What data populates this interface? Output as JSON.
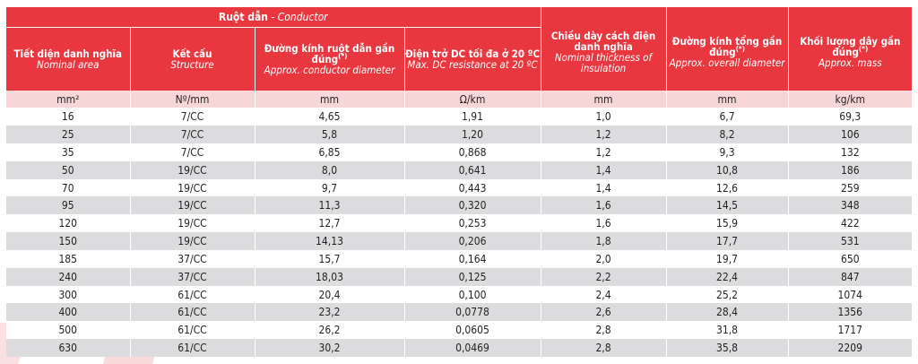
{
  "header": {
    "conductor_group": {
      "vn": "Ruột dẫn",
      "sep": " - ",
      "en": "Conductor"
    },
    "columns": [
      {
        "vn": "Tiết diện danh nghĩa",
        "en": "Nominal area"
      },
      {
        "vn": "Kết cấu",
        "en": "Structure"
      },
      {
        "vn": "Đường kính ruột dẫn gần đúng",
        "sup": "(*)",
        "en": "Approx. conductor diameter"
      },
      {
        "vn": "Điện trở DC tối đa ở 20 ºC",
        "en": "Max. DC resistance at 20 ºC"
      },
      {
        "vn": "Chiều dày cách điện danh nghĩa",
        "en": "Nominal thickness of insulation"
      },
      {
        "vn": "Đường kính tổng gần đúng",
        "sup": "(*)",
        "en": "Approx. overall diameter"
      },
      {
        "vn": "Khối lượng dây gần đúng",
        "sup": "(*)",
        "en": "Approx. mass"
      }
    ],
    "units": [
      "mm²",
      "Nº/mm",
      "mm",
      "Ω/km",
      "mm",
      "mm",
      "kg/km"
    ]
  },
  "rows": [
    [
      "16",
      "7/CC",
      "4,65",
      "1,91",
      "1,0",
      "6,7",
      "69,3"
    ],
    [
      "25",
      "7/CC",
      "5,8",
      "1,20",
      "1,2",
      "8,2",
      "106"
    ],
    [
      "35",
      "7/CC",
      "6,85",
      "0,868",
      "1,2",
      "9,3",
      "132"
    ],
    [
      "50",
      "19/CC",
      "8,0",
      "0,641",
      "1,4",
      "10,8",
      "186"
    ],
    [
      "70",
      "19/CC",
      "9,7",
      "0,443",
      "1,4",
      "12,6",
      "259"
    ],
    [
      "95",
      "19/CC",
      "11,3",
      "0,320",
      "1,6",
      "14,5",
      "348"
    ],
    [
      "120",
      "19/CC",
      "12,7",
      "0,253",
      "1,6",
      "15,9",
      "422"
    ],
    [
      "150",
      "19/CC",
      "14,13",
      "0,206",
      "1,8",
      "17,7",
      "531"
    ],
    [
      "185",
      "37/CC",
      "15,7",
      "0,164",
      "2,0",
      "19,7",
      "650"
    ],
    [
      "240",
      "37/CC",
      "18,03",
      "0,125",
      "2,2",
      "22,4",
      "847"
    ],
    [
      "300",
      "61/CC",
      "20,4",
      "0,100",
      "2,4",
      "25,2",
      "1074"
    ],
    [
      "400",
      "61/CC",
      "23,2",
      "0,0778",
      "2,6",
      "28,4",
      "1356"
    ],
    [
      "500",
      "61/CC",
      "26,2",
      "0,0605",
      "2,8",
      "31,8",
      "1717"
    ],
    [
      "630",
      "61/CC",
      "30,2",
      "0,0469",
      "2,8",
      "35,8",
      "2209"
    ]
  ],
  "colors": {
    "header_red": "#e8373f",
    "unit_pink": "#f7d6d7",
    "stripe_gray": "#dcdcde",
    "watermark": "#f5c2c5"
  }
}
